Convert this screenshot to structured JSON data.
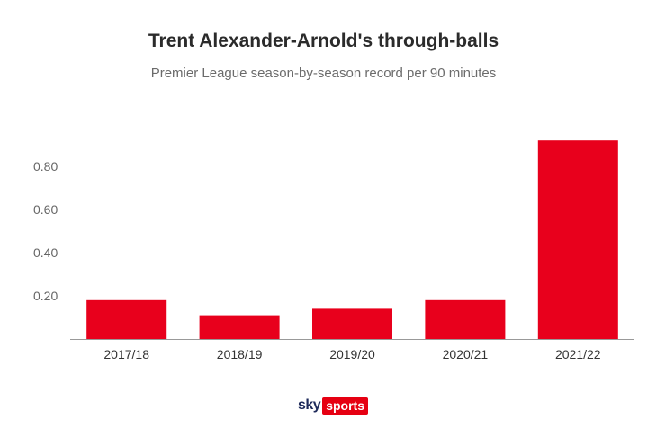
{
  "colors": {
    "bar": "#e8001c",
    "axis": "#999999",
    "title": "#2b2b2b",
    "subtitle": "#6b6b6b"
  },
  "logo": {
    "sky": "sky",
    "sports": "sports"
  },
  "chart_data": {
    "type": "bar",
    "title": "Trent Alexander-Arnold's through-balls",
    "subtitle": "Premier League season-by-season record per 90 minutes",
    "categories": [
      "2017/18",
      "2018/19",
      "2019/20",
      "2020/21",
      "2021/22"
    ],
    "values": [
      0.18,
      0.11,
      0.14,
      0.18,
      0.92
    ],
    "yticks": [
      "0.20",
      "0.40",
      "0.60",
      "0.80"
    ],
    "ylim": [
      0,
      1.0
    ],
    "xlabel": "",
    "ylabel": "",
    "grid": false,
    "legend": "none"
  }
}
